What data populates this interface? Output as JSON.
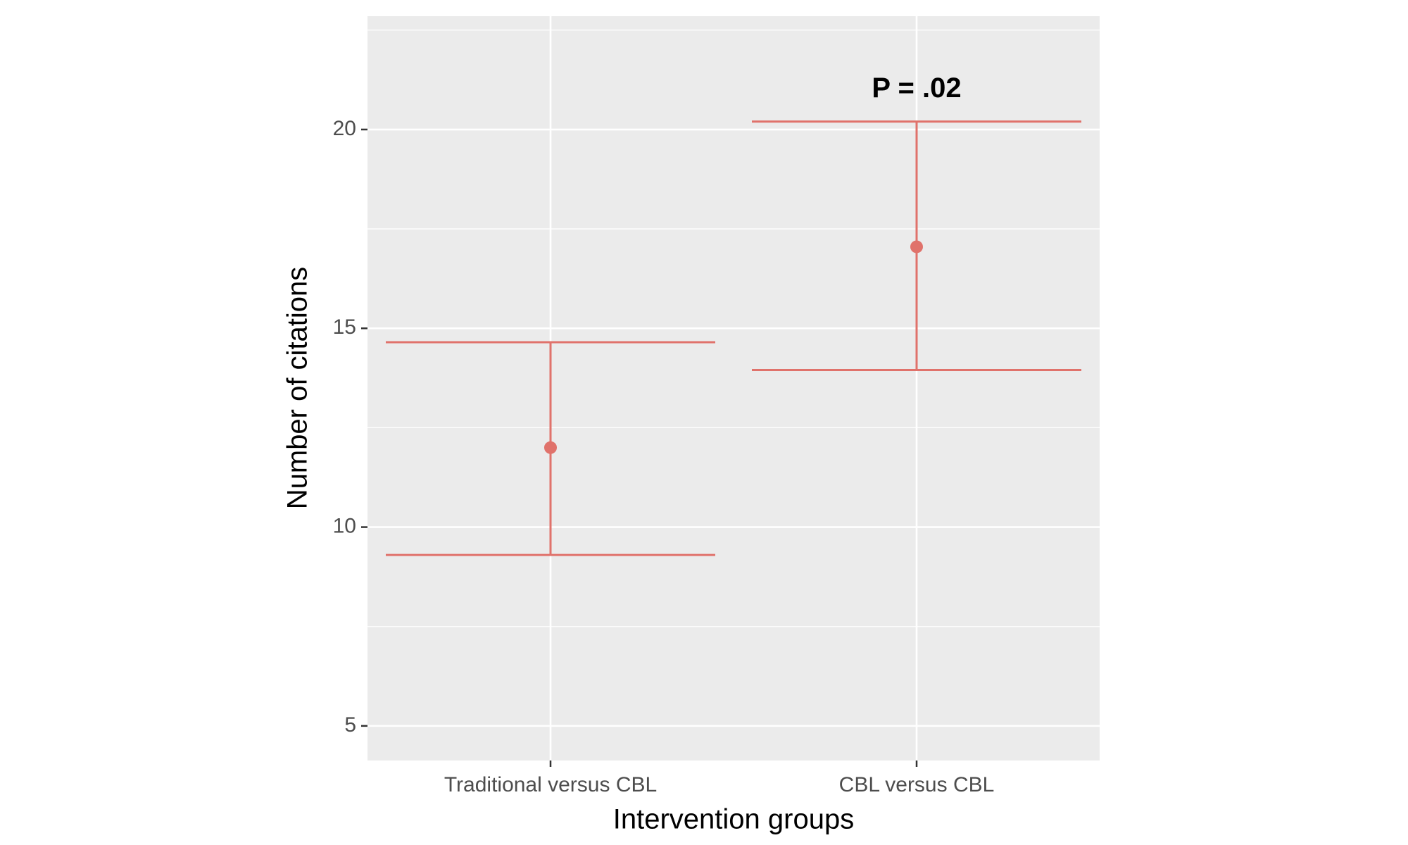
{
  "chart_data": {
    "type": "errorbar",
    "x_label": "Intervention groups",
    "y_label": "Number of citations",
    "categories": [
      "Traditional versus CBL",
      "CBL versus CBL"
    ],
    "series": [
      {
        "color": "#e0726b",
        "values": [
          12.0,
          17.05
        ],
        "lower": [
          9.3,
          13.95
        ],
        "upper": [
          14.65,
          20.2
        ]
      }
    ],
    "annotations": [
      {
        "text": "P = .02",
        "x": "CBL versus CBL",
        "y": 21.0
      }
    ],
    "ylim": [
      4.13,
      22.85
    ],
    "yticks": [
      5,
      10,
      15,
      20
    ],
    "yminor": [
      7.5,
      12.5,
      17.5,
      22.5
    ],
    "grid": true
  }
}
